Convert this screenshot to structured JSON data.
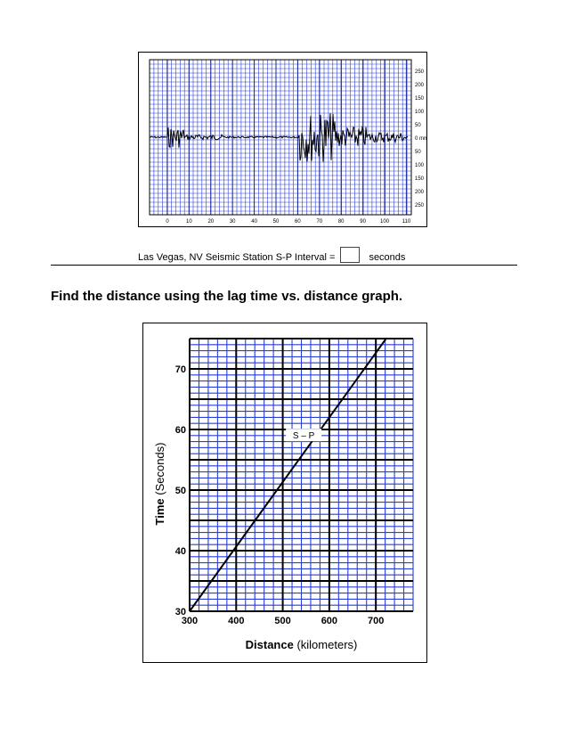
{
  "seismogram": {
    "scale_labels": [
      "250",
      "200",
      "150",
      "100",
      "50",
      "0 mm",
      "50",
      "100",
      "150",
      "200",
      "250"
    ],
    "time_labels": [
      "0",
      "10",
      "20",
      "30",
      "40",
      "50",
      "60",
      "70",
      "80",
      "90",
      "100",
      "110"
    ]
  },
  "caption": {
    "text": "Las Vegas, NV Seismic Station S-P Interval =",
    "interval_value": "",
    "unit": "seconds"
  },
  "question": "Find the distance using the lag time vs. distance graph.",
  "chart_data": {
    "type": "line",
    "xlabel": "Distance",
    "xlabel_unit": "(kilometers)",
    "ylabel": "Time",
    "ylabel_unit": "(Seconds)",
    "xlim": [
      300,
      780
    ],
    "ylim": [
      30,
      75
    ],
    "x_ticks": [
      "300",
      "400",
      "500",
      "600",
      "700"
    ],
    "y_ticks": [
      "30",
      "40",
      "50",
      "60",
      "70"
    ],
    "grid": true,
    "series": [
      {
        "name": "S – P",
        "x": [
          300,
          722
        ],
        "y": [
          30,
          75
        ]
      }
    ],
    "colors": {
      "grid_minor": "#2a3fd6",
      "grid_major": "#000000",
      "line": "#000000"
    }
  }
}
